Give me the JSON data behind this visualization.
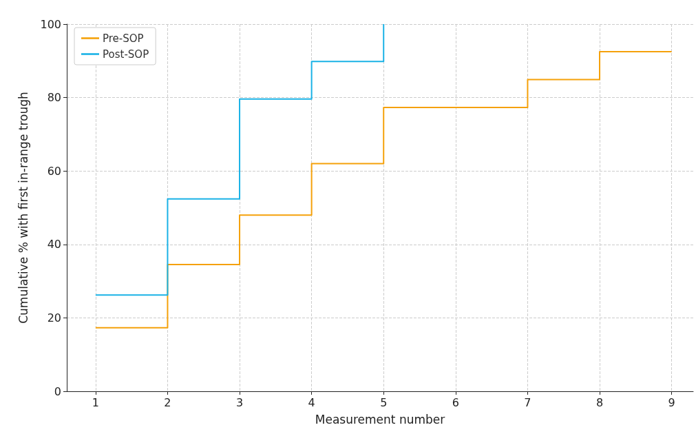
{
  "chart_data": {
    "type": "step",
    "xlabel": "Measurement number",
    "ylabel": "Cumulative % with first in-range trough",
    "xlim": [
      0.6,
      9.3
    ],
    "xticks": [
      1,
      2,
      3,
      4,
      5,
      6,
      7,
      8,
      9
    ],
    "ylim": [
      0,
      100
    ],
    "yticks": [
      0,
      20,
      40,
      60,
      80,
      100
    ],
    "grid": true,
    "legend": "top left",
    "marker": "none",
    "line_style": "solid",
    "series": [
      {
        "name": "Pre-SOP",
        "color": "#f5a10a",
        "x": [
          1,
          2,
          3,
          4,
          5,
          6,
          7,
          8,
          9
        ],
        "values": [
          17.3,
          34.5,
          48,
          62,
          77.3,
          77.3,
          84.9,
          92.5,
          92.5
        ]
      },
      {
        "name": "Post-SOP",
        "color": "#1ab2e6",
        "x": [
          1,
          2,
          3,
          4,
          5
        ],
        "values": [
          26.2,
          52.4,
          79.6,
          89.8,
          100
        ]
      }
    ]
  }
}
